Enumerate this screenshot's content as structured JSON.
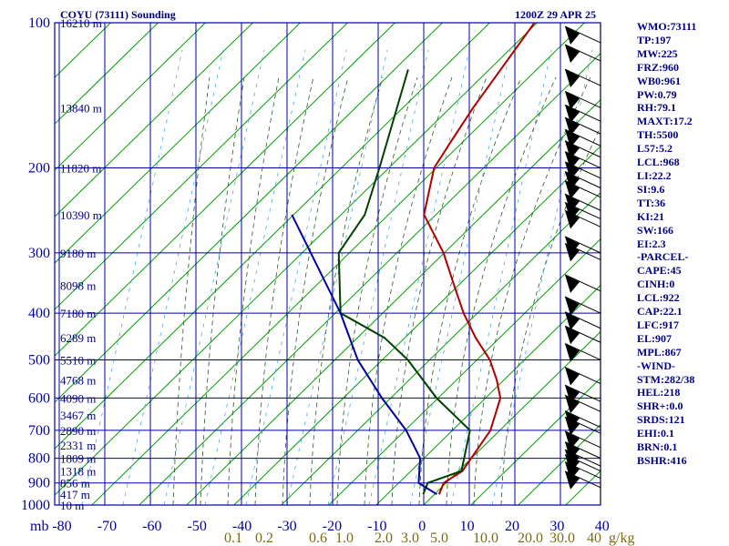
{
  "header": {
    "station": "COYU (73111) Sounding",
    "time": "1200Z 29 APR 25"
  },
  "chart_data": {
    "type": "skew-t",
    "title": "COYU (73111) Sounding",
    "subtitle": "1200Z 29 APR 25",
    "pressure_ticks": [
      100,
      200,
      300,
      400,
      500,
      600,
      700,
      800,
      900,
      1000
    ],
    "pressure_unit": "mb",
    "height_labels": [
      {
        "p": 100,
        "h": "16210 m"
      },
      {
        "p": 150,
        "h": "13840 m"
      },
      {
        "p": 200,
        "h": "11820 m"
      },
      {
        "p": 250,
        "h": "10390 m"
      },
      {
        "p": 300,
        "h": "9180 m"
      },
      {
        "p": 350,
        "h": "8098 m"
      },
      {
        "p": 400,
        "h": "7180 m"
      },
      {
        "p": 450,
        "h": "6289 m"
      },
      {
        "p": 500,
        "h": "5510 m"
      },
      {
        "p": 550,
        "h": "4768 m"
      },
      {
        "p": 600,
        "h": "4090 m"
      },
      {
        "p": 650,
        "h": "3467 m"
      },
      {
        "p": 700,
        "h": "2890 m"
      },
      {
        "p": 750,
        "h": "2331 m"
      },
      {
        "p": 800,
        "h": "1809 m"
      },
      {
        "p": 850,
        "h": "1318 m"
      },
      {
        "p": 900,
        "h": "856 m"
      },
      {
        "p": 950,
        "h": "417 m"
      },
      {
        "p": 1000,
        "h": "10 m"
      }
    ],
    "temperature_ticks": [
      "-80",
      "-70",
      "-60",
      "-50",
      "-40",
      "-30",
      "-20",
      "-10",
      "0",
      "10",
      "20",
      "30",
      "40"
    ],
    "mixing_ratio_labels": [
      "0.1",
      "0.2",
      "0.6",
      "1.0",
      "2.0",
      "3.0",
      "5.0",
      "10.0",
      "20.0",
      "30.0",
      "40"
    ],
    "mixing_ratio_unit": "g/kg",
    "series": [
      {
        "color": "#b00000",
        "points": [
          [
            100,
            -60.5
          ],
          [
            150,
            -59
          ],
          [
            175,
            -58
          ],
          [
            200,
            -57
          ],
          [
            250,
            -51
          ],
          [
            300,
            -40
          ],
          [
            350,
            -32
          ],
          [
            400,
            -25
          ],
          [
            450,
            -18
          ],
          [
            500,
            -11
          ],
          [
            550,
            -6
          ],
          [
            600,
            -2
          ],
          [
            700,
            1.5
          ],
          [
            850,
            2.5
          ],
          [
            900,
            0.5
          ],
          [
            950,
            1.5
          ]
        ]
      },
      {
        "color": "#004000",
        "points": [
          [
            125,
            -80
          ],
          [
            200,
            -69
          ],
          [
            250,
            -64
          ],
          [
            300,
            -63
          ],
          [
            400,
            -52
          ],
          [
            450,
            -38
          ],
          [
            500,
            -29
          ],
          [
            600,
            -16
          ],
          [
            700,
            -3
          ],
          [
            850,
            2.3
          ],
          [
            900,
            -3
          ],
          [
            950,
            -2
          ]
        ]
      },
      {
        "color": "#0000a0",
        "points": [
          [
            250,
            -80
          ],
          [
            400,
            -52
          ],
          [
            500,
            -40
          ],
          [
            600,
            -28
          ],
          [
            700,
            -17
          ],
          [
            800,
            -9
          ],
          [
            900,
            -5
          ],
          [
            950,
            1
          ]
        ]
      }
    ],
    "wind_levels": [
      110,
      120,
      135,
      150,
      160,
      170,
      180,
      190,
      200,
      210,
      220,
      230,
      245,
      255,
      265,
      300,
      310,
      360,
      400,
      430,
      460,
      500,
      560,
      610,
      640,
      690,
      710,
      760,
      800,
      830,
      850,
      880,
      920
    ]
  },
  "indices": [
    "WMO:73111",
    "TP:197",
    "MW:225",
    "FRZ:960",
    "WB0:961",
    "PW:0.79",
    "RH:79.1",
    "MAXT:17.2",
    "TH:5500",
    "L57:5.2",
    "LCL:968",
    "LI:22.2",
    "SI:9.6",
    "TT:36",
    "KI:21",
    "SW:166",
    "EI:2.3",
    "-PARCEL-",
    "CAPE:45",
    "CINH:0",
    "LCL:922",
    "CAP:22.1",
    "LFC:917",
    "EL:907",
    "MPL:867",
    "-WIND-",
    "STM:282/38",
    "HEL:218",
    "SHR+:0.0",
    "SRDS:121",
    "EHI:0.1",
    "BRN:0.1",
    "BSHR:416"
  ],
  "colors": {
    "background": "#ffffff",
    "axis": "#0000a0",
    "isobar": "#0000a0",
    "isotherm": "#0000a0",
    "dry_adiabat": "#00a000",
    "moist_adiabat": "#2a5a2a",
    "mixing_ratio": "#4aa8e8",
    "temperature": "#b00000",
    "dewpoint": "#004000",
    "wetbulb": "#0000a0",
    "text": "#000080",
    "mixing_label": "#7a6a10"
  }
}
